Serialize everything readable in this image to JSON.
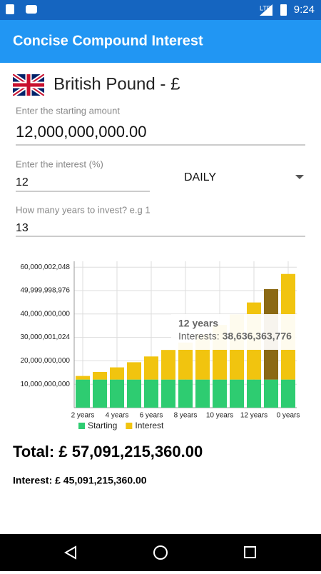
{
  "status_bar": {
    "time": "9:24"
  },
  "app_bar": {
    "title": "Concise Compound Interest"
  },
  "currency": "British Pound - £",
  "form": {
    "amount_label": "Enter the starting amount",
    "amount": "12,000,000,000.00",
    "interest_label": "Enter the interest (%)",
    "interest": "12",
    "frequency": "DAILY",
    "years_label": "How many years to invest? e.g 1",
    "years": "13"
  },
  "chart_data": {
    "type": "stacked_bar",
    "categories": [
      "2 years",
      null,
      "4 years",
      null,
      "6 years",
      null,
      "8 years",
      null,
      "10 years",
      null,
      "12 years",
      null,
      "0 years"
    ],
    "series": [
      {
        "name": "Starting",
        "color": "#2ecc71",
        "values": [
          12000000000,
          12000000000,
          12000000000,
          12000000000,
          12000000000,
          12000000000,
          12000000000,
          12000000000,
          12000000000,
          12000000000,
          12000000000,
          12000000000,
          12000000000
        ]
      },
      {
        "name": "Interest",
        "color": "#f1c40f",
        "values": [
          1530000000,
          3250000000,
          5200000000,
          7390000000,
          9860000000,
          12650000000,
          15790000000,
          19330000000,
          23330000000,
          27840000000,
          32920000000,
          38636363776,
          45091215360
        ]
      }
    ],
    "ylim": [
      0,
      62500000000
    ],
    "yticks": [
      {
        "value": 10000000000,
        "label": "10,000,000,000"
      },
      {
        "value": 20000000000,
        "label": "20,000,000,000"
      },
      {
        "value": 30000001024,
        "label": "30,000,001,024"
      },
      {
        "value": 40000000000,
        "label": "40,000,000,000"
      },
      {
        "value": 49999998976,
        "label": "49,999,998,976"
      },
      {
        "value": 60000002048,
        "label": "60,000,002,048"
      }
    ],
    "grid": true,
    "highlight_index": 11,
    "highlight_color": "#8b6914",
    "tooltip": {
      "title": "12 years",
      "label": "Interests:",
      "value_label": "38,636,363,776"
    }
  },
  "total": "Total: £ 57,091,215,360.00",
  "interest_total": "Interest: £ 45,091,215,360.00"
}
